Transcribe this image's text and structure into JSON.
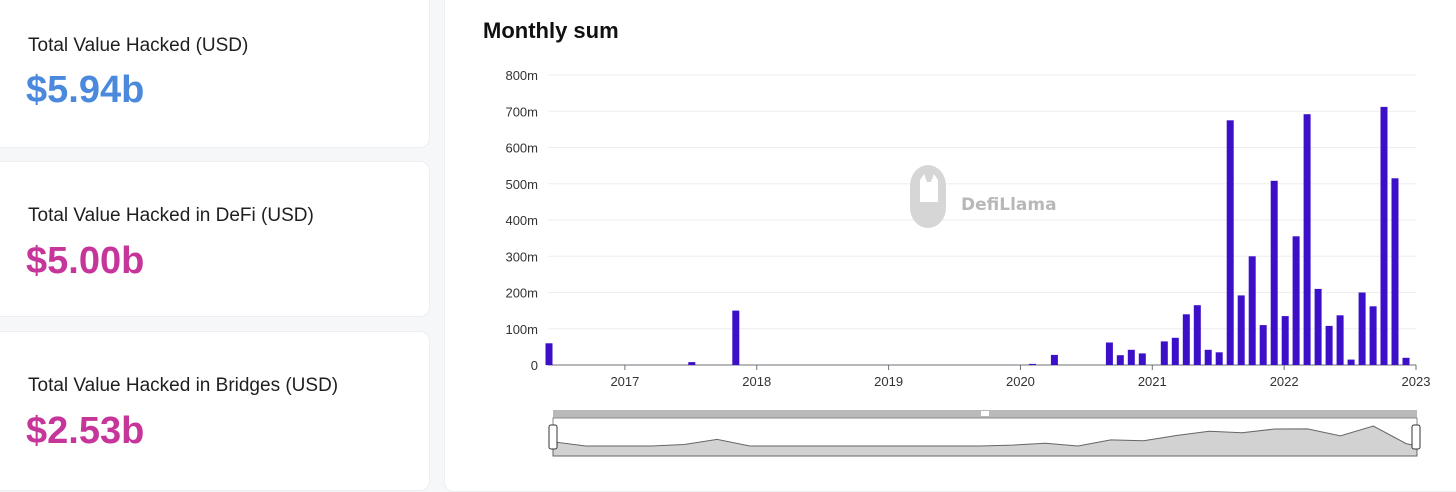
{
  "stats": [
    {
      "label": "Total Value Hacked (USD)",
      "value": "$5.94b",
      "color": "#4a89dc"
    },
    {
      "label": "Total Value Hacked in DeFi (USD)",
      "value": "$5.00b",
      "color": "#c6359a"
    },
    {
      "label": "Total Value Hacked in Bridges (USD)",
      "value": "$2.53b",
      "color": "#c6359a"
    }
  ],
  "watermark": "DefiLlama",
  "chart_data": {
    "type": "bar",
    "title": "Monthly sum",
    "xlabel": "",
    "ylabel": "",
    "ylim": [
      0,
      800
    ],
    "y_ticks": [
      "0",
      "100m",
      "200m",
      "300m",
      "400m",
      "500m",
      "600m",
      "700m",
      "800m"
    ],
    "x_ticks": [
      "2017",
      "2018",
      "2019",
      "2020",
      "2021",
      "2022",
      "2023"
    ],
    "grid": true,
    "bar_color": "#3c10c8",
    "x_unit": "month",
    "series": [
      {
        "values": [
          {
            "x": "2016-06",
            "y": 60
          },
          {
            "x": "2017-07",
            "y": 8
          },
          {
            "x": "2017-11",
            "y": 150
          },
          {
            "x": "2020-02",
            "y": 3
          },
          {
            "x": "2020-04",
            "y": 28
          },
          {
            "x": "2020-09",
            "y": 62
          },
          {
            "x": "2020-10",
            "y": 27
          },
          {
            "x": "2020-11",
            "y": 42
          },
          {
            "x": "2020-12",
            "y": 32
          },
          {
            "x": "2021-02",
            "y": 65
          },
          {
            "x": "2021-03",
            "y": 75
          },
          {
            "x": "2021-04",
            "y": 140
          },
          {
            "x": "2021-05",
            "y": 165
          },
          {
            "x": "2021-06",
            "y": 42
          },
          {
            "x": "2021-07",
            "y": 35
          },
          {
            "x": "2021-08",
            "y": 675
          },
          {
            "x": "2021-09",
            "y": 192
          },
          {
            "x": "2021-10",
            "y": 300
          },
          {
            "x": "2021-11",
            "y": 110
          },
          {
            "x": "2021-12",
            "y": 508
          },
          {
            "x": "2022-01",
            "y": 135
          },
          {
            "x": "2022-02",
            "y": 355
          },
          {
            "x": "2022-03",
            "y": 692
          },
          {
            "x": "2022-04",
            "y": 210
          },
          {
            "x": "2022-05",
            "y": 108
          },
          {
            "x": "2022-06",
            "y": 137
          },
          {
            "x": "2022-07",
            "y": 15
          },
          {
            "x": "2022-08",
            "y": 200
          },
          {
            "x": "2022-09",
            "y": 162
          },
          {
            "x": "2022-10",
            "y": 712
          },
          {
            "x": "2022-11",
            "y": 515
          },
          {
            "x": "2022-12",
            "y": 20
          }
        ]
      }
    ],
    "x_range": [
      "2016-06",
      "2023-01"
    ]
  }
}
